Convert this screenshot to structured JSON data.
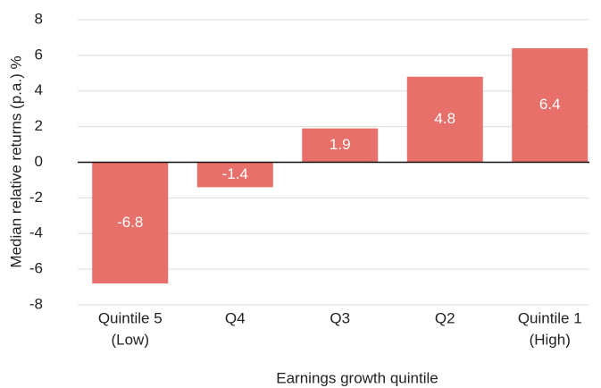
{
  "chart_data": {
    "type": "bar",
    "categories": [
      [
        "Quintile 5",
        "(Low)"
      ],
      [
        "Q4"
      ],
      [
        "Q3"
      ],
      [
        "Q2"
      ],
      [
        "Quintile 1",
        "(High)"
      ]
    ],
    "values": [
      -6.8,
      -1.4,
      1.9,
      4.8,
      6.4
    ],
    "color": "#e8706b",
    "xlabel": "Earnings growth quintile",
    "ylabel": "Median relative returns (p.a.) %",
    "ylim": [
      -8,
      8
    ],
    "yticks": [
      -8,
      -6,
      -4,
      -2,
      0,
      2,
      4,
      6,
      8
    ],
    "grid": true
  }
}
